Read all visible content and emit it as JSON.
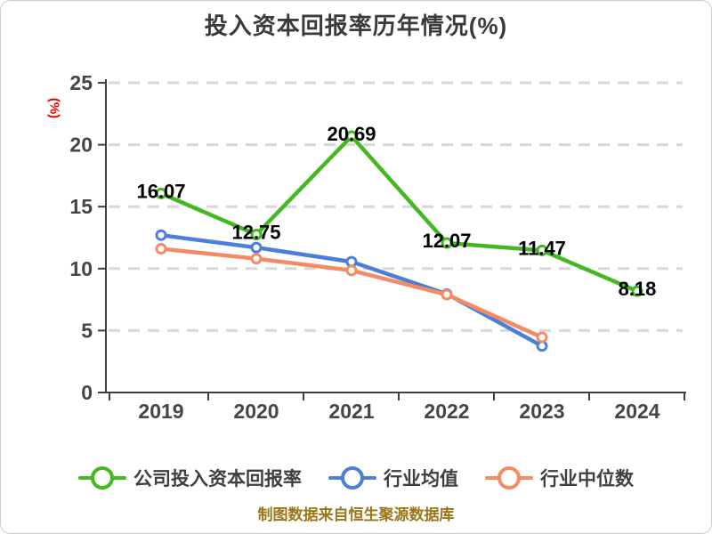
{
  "title": "投入资本回报率历年情况(%)",
  "footer": "制图数据来自恒生聚源数据库",
  "chart_data": {
    "type": "line",
    "title": "投入资本回报率历年情况(%)",
    "xlabel": "",
    "ylabel": "(%)",
    "categories": [
      "2019",
      "2020",
      "2021",
      "2022",
      "2023",
      "2024"
    ],
    "yticks": [
      0,
      5,
      10,
      15,
      20,
      25
    ],
    "ylim": [
      0,
      25
    ],
    "grid": "horizontal-dashed",
    "legend_position": "bottom",
    "series": [
      {
        "name": "公司投入资本回报率",
        "color": "#43b81f",
        "values": [
          16.07,
          12.75,
          20.69,
          12.07,
          11.47,
          8.18
        ],
        "labels": [
          "16.07",
          "12.75",
          "20.69",
          "12.07",
          "11.47",
          "8.18"
        ],
        "show_labels": true
      },
      {
        "name": "行业均值",
        "color": "#4d7ed8",
        "values": [
          12.7,
          11.7,
          10.55,
          7.95,
          3.75,
          null
        ],
        "show_labels": false
      },
      {
        "name": "行业中位数",
        "color": "#f58b64",
        "values": [
          11.6,
          10.8,
          9.85,
          7.9,
          4.45,
          null
        ],
        "show_labels": false
      }
    ],
    "colors": {
      "axis": "#3f3f3f",
      "tick_label": "#454545",
      "grid": "#d8d8d8",
      "value_label": "#000000",
      "ylabel": "#ee0000",
      "title": "#3a3a3a",
      "footer": "#9b7516"
    }
  }
}
